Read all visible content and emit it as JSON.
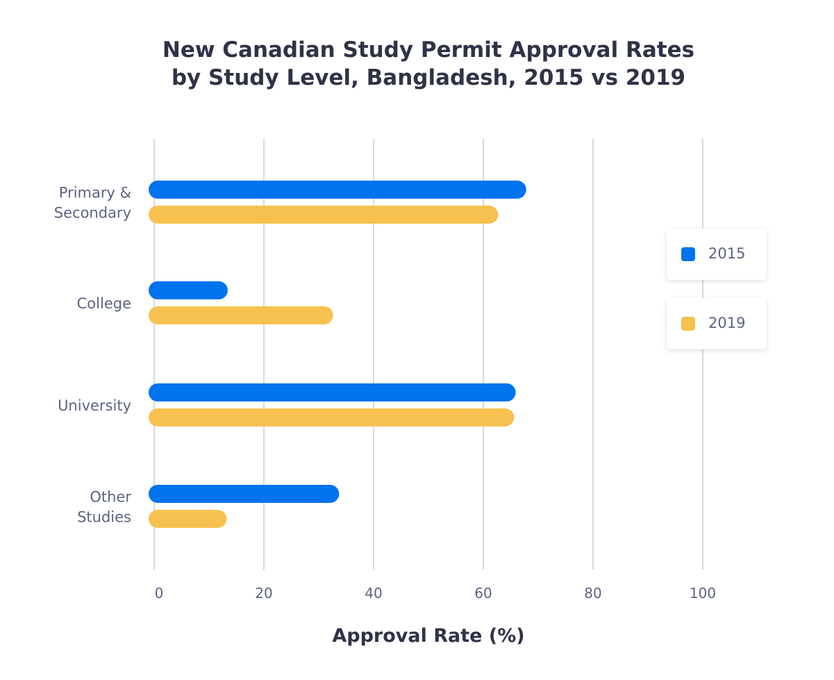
{
  "chart_data": {
    "type": "bar",
    "orientation": "horizontal",
    "title": "New Canadian Study Permit Approval Rates by Study Level, Bangladesh, 2015 vs 2019",
    "title_lines": [
      "New Canadian Study Permit Approval Rates",
      "by Study Level, Bangladesh, 2015 vs 2019"
    ],
    "categories": [
      [
        "Primary &",
        "Secondary"
      ],
      [
        "College"
      ],
      [
        "University"
      ],
      [
        "Other",
        "Studies"
      ]
    ],
    "series": [
      {
        "name": "2015",
        "color": "#0073ee",
        "values": [
          66.8,
          12.4,
          64.9,
          32.7
        ]
      },
      {
        "name": "2019",
        "color": "#f6c14f",
        "values": [
          61.7,
          31.6,
          64.6,
          12.2
        ]
      }
    ],
    "xlabel": "Approval Rate (%)",
    "ylabel": "",
    "xlim": [
      0,
      100
    ],
    "xticks": [
      "0",
      "20",
      "40",
      "60",
      "80",
      "100"
    ],
    "grid": true,
    "legend_position": "right"
  }
}
